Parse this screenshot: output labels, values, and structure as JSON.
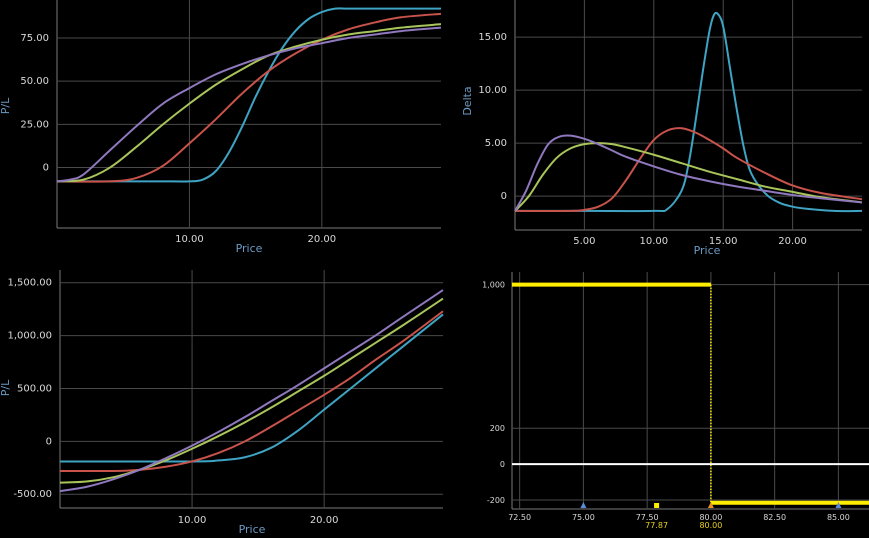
{
  "colors": {
    "grid": "#4a4a4a",
    "axis": "#6a6a6a",
    "axis_text": "#d8d8d8",
    "axis_label": "#6a9ac4",
    "blue": "#3fa3c4",
    "red": "#c8534b",
    "green": "#a8c45a",
    "purple": "#8f78bd",
    "yellow": "#ffee00",
    "white": "#ffffff"
  },
  "chart_data": [
    {
      "type": "line",
      "xlabel": "Price",
      "ylabel": "P/L",
      "xlim": [
        0,
        29
      ],
      "ylim": [
        -35,
        97
      ],
      "x_ticks": [
        10,
        20
      ],
      "x_tick_labels": [
        "10.00",
        "20.00"
      ],
      "y_ticks": [
        0,
        25,
        50,
        75
      ],
      "y_tick_labels": [
        "0",
        "25.00",
        "50.00",
        "75.00"
      ],
      "grid": true,
      "series": [
        {
          "color": "blue",
          "x": [
            0,
            6,
            8,
            10,
            11,
            12,
            13,
            14,
            15,
            16,
            17,
            18,
            19,
            20,
            21,
            22,
            24,
            29
          ],
          "y": [
            -8,
            -8,
            -8,
            -8,
            -7,
            -2,
            9,
            24,
            41,
            56,
            69,
            79,
            86,
            90,
            92,
            92,
            92,
            92
          ]
        },
        {
          "color": "red",
          "x": [
            0,
            4,
            6,
            8,
            10,
            12,
            14,
            16,
            18,
            20,
            22,
            24,
            26,
            29
          ],
          "y": [
            -8,
            -8,
            -6,
            1,
            14,
            28,
            43,
            56,
            66,
            74,
            80,
            84,
            87,
            89
          ]
        },
        {
          "color": "green",
          "x": [
            0,
            2,
            4,
            6,
            8,
            10,
            12,
            14,
            16,
            18,
            20,
            22,
            24,
            26,
            29
          ],
          "y": [
            -8,
            -7,
            0,
            12,
            25,
            37,
            48,
            57,
            65,
            70,
            74,
            77,
            79,
            81,
            83
          ]
        },
        {
          "color": "purple",
          "x": [
            0,
            1,
            2,
            4,
            6,
            8,
            10,
            12,
            14,
            16,
            18,
            20,
            22,
            24,
            26,
            29
          ],
          "y": [
            -8,
            -7,
            -4,
            10,
            24,
            37,
            46,
            54,
            60,
            65,
            69,
            72,
            75,
            77,
            79,
            81
          ]
        }
      ]
    },
    {
      "type": "line",
      "xlabel": "Price",
      "ylabel": "Delta",
      "xlim": [
        0,
        25
      ],
      "ylim": [
        -3.2,
        18.5
      ],
      "x_ticks": [
        5,
        10,
        15,
        20
      ],
      "x_tick_labels": [
        "5.00",
        "10.00",
        "15.00",
        "20.00"
      ],
      "y_ticks": [
        0,
        5,
        10,
        15
      ],
      "y_tick_labels": [
        "0",
        "5.00",
        "10.00",
        "15.00"
      ],
      "grid": true,
      "series": [
        {
          "color": "blue",
          "x": [
            0,
            5,
            10,
            11,
            12,
            12.5,
            13,
            13.5,
            14,
            14.3,
            14.6,
            15,
            15.5,
            16,
            16.5,
            17,
            18,
            19,
            20,
            21,
            23,
            25
          ],
          "y": [
            -1.4,
            -1.4,
            -1.4,
            -1.2,
            0.5,
            3,
            7,
            11.5,
            15.5,
            17.0,
            17.2,
            16,
            12,
            8,
            4.5,
            2.2,
            0.3,
            -0.6,
            -1,
            -1.2,
            -1.4,
            -1.4
          ]
        },
        {
          "color": "red",
          "x": [
            0,
            4,
            5,
            6,
            7,
            8,
            9,
            10,
            11,
            12,
            13,
            14,
            15,
            16,
            18,
            20,
            22,
            25
          ],
          "y": [
            -1.4,
            -1.4,
            -1.3,
            -1,
            -0.2,
            1.5,
            3.5,
            5.3,
            6.2,
            6.4,
            6,
            5.3,
            4.5,
            3.6,
            2.2,
            1,
            0.3,
            -0.3
          ]
        },
        {
          "color": "green",
          "x": [
            0,
            1,
            2,
            3,
            4,
            5,
            6,
            7,
            8,
            10,
            12,
            14,
            16,
            18,
            20,
            22,
            25
          ],
          "y": [
            -1.4,
            0,
            2,
            3.6,
            4.5,
            4.9,
            5,
            4.9,
            4.6,
            3.9,
            3.1,
            2.3,
            1.6,
            0.9,
            0.4,
            -0.1,
            -0.6
          ]
        },
        {
          "color": "purple",
          "x": [
            0,
            0.8,
            1.6,
            2.4,
            3.2,
            4,
            5,
            6,
            7,
            8,
            10,
            12,
            14,
            16,
            18,
            20,
            22,
            25
          ],
          "y": [
            -1.4,
            0.5,
            3,
            4.9,
            5.6,
            5.7,
            5.4,
            4.9,
            4.3,
            3.7,
            2.8,
            2,
            1.4,
            0.9,
            0.5,
            0.1,
            -0.2,
            -0.6
          ]
        }
      ]
    },
    {
      "type": "line",
      "xlabel": "Price",
      "ylabel": "P/L",
      "xlim": [
        0,
        29
      ],
      "ylim": [
        -630,
        1620
      ],
      "x_ticks": [
        10,
        20
      ],
      "x_tick_labels": [
        "10.00",
        "20.00"
      ],
      "y_ticks": [
        -500,
        0,
        500,
        1000,
        1500
      ],
      "y_tick_labels": [
        "-500.00",
        "0",
        "500.00",
        "1,000.00",
        "1,500.00"
      ],
      "grid": true,
      "series": [
        {
          "color": "blue",
          "x": [
            0,
            10,
            12,
            14,
            16,
            18,
            20,
            22,
            24,
            26,
            29
          ],
          "y": [
            -190,
            -190,
            -180,
            -150,
            -60,
            100,
            300,
            500,
            700,
            900,
            1200
          ]
        },
        {
          "color": "red",
          "x": [
            0,
            4,
            6,
            8,
            10,
            12,
            14,
            16,
            18,
            20,
            22,
            24,
            26,
            29
          ],
          "y": [
            -280,
            -280,
            -270,
            -240,
            -190,
            -110,
            0,
            140,
            290,
            440,
            600,
            780,
            950,
            1230
          ]
        },
        {
          "color": "green",
          "x": [
            0,
            2,
            4,
            6,
            8,
            10,
            12,
            14,
            16,
            18,
            20,
            22,
            24,
            26,
            29
          ],
          "y": [
            -390,
            -380,
            -340,
            -270,
            -180,
            -70,
            50,
            180,
            320,
            470,
            620,
            780,
            940,
            1100,
            1350
          ]
        },
        {
          "color": "purple",
          "x": [
            0,
            2,
            4,
            6,
            8,
            10,
            12,
            14,
            16,
            18,
            20,
            22,
            24,
            26,
            29
          ],
          "y": [
            -470,
            -430,
            -360,
            -270,
            -160,
            -40,
            90,
            230,
            380,
            530,
            690,
            850,
            1010,
            1180,
            1430
          ]
        }
      ]
    },
    {
      "type": "line",
      "xlim": [
        72.2,
        86.2
      ],
      "ylim": [
        -250,
        1070
      ],
      "x_ticks": [
        72.5,
        75,
        77.5,
        80,
        82.5,
        85
      ],
      "x_tick_labels": [
        "72.50",
        "75.00",
        "77.50",
        "80.00",
        "82.50",
        "85.00"
      ],
      "y_ticks": [
        -200,
        0,
        200,
        1000
      ],
      "y_tick_labels": [
        "-200",
        "0",
        "200",
        "1,000"
      ],
      "grid": true,
      "series": [
        {
          "color": "yellow",
          "x": [
            72.2,
            80,
            80,
            86.2
          ],
          "y": [
            1000,
            1000,
            -215,
            -215
          ]
        },
        {
          "color": "white",
          "x": [
            72.2,
            86.2
          ],
          "y": [
            0,
            0
          ]
        }
      ],
      "markers": [
        {
          "x": 75,
          "shape": "triangle",
          "color": "blue"
        },
        {
          "x": 77.87,
          "shape": "square",
          "color": "yellow",
          "label": "77.87"
        },
        {
          "x": 80,
          "shape": "triangle",
          "color": "orange",
          "label": "80.00"
        },
        {
          "x": 85,
          "shape": "triangle",
          "color": "blue"
        }
      ]
    }
  ]
}
